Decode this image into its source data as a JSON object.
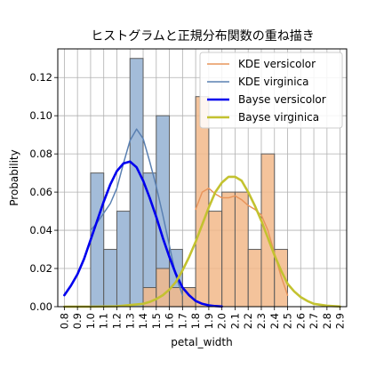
{
  "chart_data": {
    "type": "bar",
    "title": "ヒストグラムと正規分布関数の重ね描き",
    "xlabel": "petal_width",
    "ylabel": "Probability",
    "xlim": [
      0.75,
      2.95
    ],
    "ylim": [
      0,
      0.135
    ],
    "x_ticks": [
      "0.8",
      "0.9",
      "1.0",
      "1.1",
      "1.2",
      "1.3",
      "1.4",
      "1.5",
      "1.6",
      "1.7",
      "1.8",
      "1.9",
      "2.0",
      "2.1",
      "2.2",
      "2.3",
      "2.4",
      "2.5",
      "2.6",
      "2.7",
      "2.8",
      "2.9"
    ],
    "y_ticks": [
      "0.00",
      "0.02",
      "0.04",
      "0.06",
      "0.08",
      "0.10",
      "0.12"
    ],
    "grid": true,
    "legend_position": "top-right",
    "colors": {
      "versicolor_hist": "#a3bcd9",
      "virginica_hist": "#f2b98a",
      "kde_versicolor": "#e8955c",
      "kde_virginica": "#5a80b2",
      "bayse_versicolor": "#0000ee",
      "bayse_virginica": "#c3c230",
      "bar_edge": "#5c5c5c",
      "grid": "#b0b0b0"
    },
    "bin_width": 0.1,
    "histograms": [
      {
        "name": "versicolor",
        "bins_start": [
          1.0,
          1.1,
          1.2,
          1.3,
          1.4,
          1.5,
          1.6,
          1.7
        ],
        "values": [
          0.07,
          0.03,
          0.05,
          0.13,
          0.07,
          0.1,
          0.03,
          0.01
        ]
      },
      {
        "name": "virginica",
        "bins_start": [
          1.4,
          1.5,
          1.6,
          1.7,
          1.8,
          1.9,
          2.0,
          2.1,
          2.2,
          2.3,
          2.4
        ],
        "values": [
          0.01,
          0.02,
          0.01,
          0.01,
          0.11,
          0.05,
          0.06,
          0.06,
          0.03,
          0.08,
          0.03
        ]
      }
    ],
    "series": [
      {
        "name": "KDE versicolor",
        "style": "thin",
        "x": [
          1.8,
          1.85,
          1.9,
          1.95,
          2.0,
          2.05,
          2.1,
          2.15,
          2.2,
          2.25,
          2.3,
          2.35,
          2.4,
          2.45,
          2.5
        ],
        "values": [
          0.051,
          0.06,
          0.062,
          0.059,
          0.057,
          0.057,
          0.058,
          0.056,
          0.053,
          0.051,
          0.048,
          0.04,
          0.028,
          0.016,
          0.006
        ]
      },
      {
        "name": "KDE virginica",
        "style": "thin",
        "x": [
          1.0,
          1.05,
          1.1,
          1.15,
          1.2,
          1.25,
          1.3,
          1.35,
          1.4,
          1.45,
          1.5,
          1.55,
          1.6,
          1.65,
          1.7
        ],
        "values": [
          0.04,
          0.044,
          0.049,
          0.054,
          0.062,
          0.075,
          0.087,
          0.093,
          0.088,
          0.076,
          0.063,
          0.048,
          0.032,
          0.016,
          0.006
        ]
      },
      {
        "name": "Bayse versicolor",
        "style": "thick",
        "x": [
          0.8,
          0.85,
          0.9,
          0.95,
          1.0,
          1.05,
          1.1,
          1.15,
          1.2,
          1.25,
          1.3,
          1.35,
          1.4,
          1.45,
          1.5,
          1.55,
          1.6,
          1.65,
          1.7,
          1.75,
          1.8,
          1.85,
          1.9,
          1.95,
          2.0
        ],
        "values": [
          0.006,
          0.011,
          0.017,
          0.025,
          0.035,
          0.045,
          0.055,
          0.064,
          0.071,
          0.075,
          0.076,
          0.073,
          0.066,
          0.057,
          0.047,
          0.036,
          0.026,
          0.017,
          0.01,
          0.006,
          0.003,
          0.0015,
          0.0007,
          0.0003,
          0.0001
        ]
      },
      {
        "name": "Bayse virginica",
        "style": "thick",
        "x": [
          0.8,
          1.0,
          1.2,
          1.4,
          1.45,
          1.5,
          1.55,
          1.6,
          1.65,
          1.7,
          1.75,
          1.8,
          1.85,
          1.9,
          1.95,
          2.0,
          2.05,
          2.1,
          2.15,
          2.2,
          2.25,
          2.3,
          2.35,
          2.4,
          2.45,
          2.5,
          2.55,
          2.6,
          2.65,
          2.7,
          2.8,
          2.9
        ],
        "values": [
          0.0,
          0.0,
          0.0002,
          0.0015,
          0.0025,
          0.004,
          0.006,
          0.009,
          0.013,
          0.019,
          0.026,
          0.034,
          0.043,
          0.052,
          0.06,
          0.065,
          0.068,
          0.068,
          0.066,
          0.06,
          0.053,
          0.045,
          0.036,
          0.027,
          0.019,
          0.012,
          0.008,
          0.005,
          0.003,
          0.0015,
          0.0005,
          0.0001
        ]
      }
    ]
  }
}
